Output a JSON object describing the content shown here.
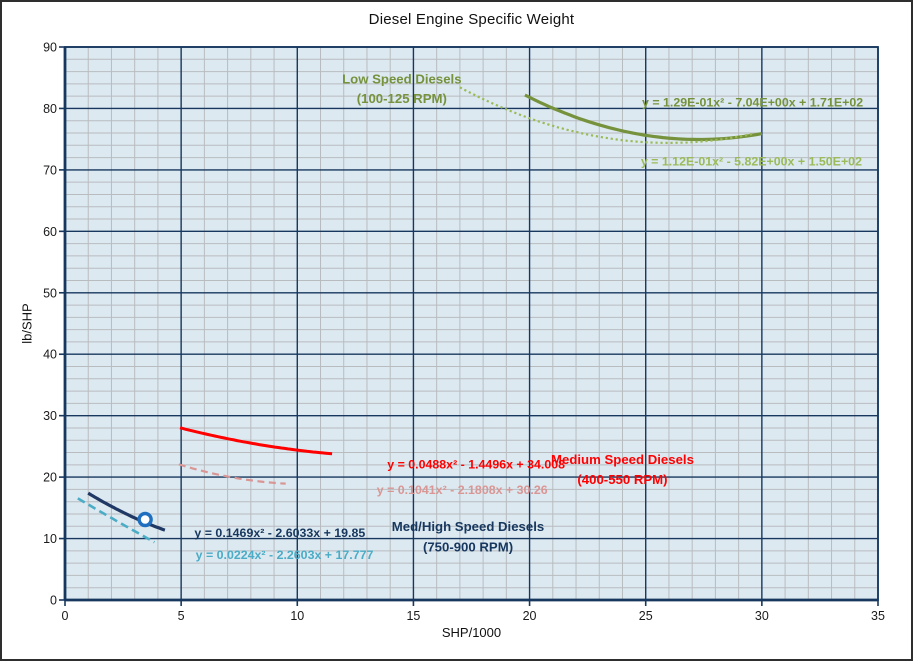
{
  "chart_data": {
    "type": "line",
    "title": "Diesel Engine Specific Weight",
    "xlabel": "SHP/1000",
    "ylabel": "lb/SHP",
    "xlim": [
      0,
      35
    ],
    "ylim": [
      0,
      90
    ],
    "x_ticks": [
      0,
      5,
      10,
      15,
      20,
      25,
      30,
      35
    ],
    "y_ticks": [
      0,
      10,
      20,
      30,
      40,
      50,
      60,
      70,
      80,
      90
    ],
    "x_minor_step": 1,
    "y_minor_step": 2,
    "grid": "major and minor gridlines on",
    "legend": "none (inline colored labels)",
    "plot_bg": "#DCE9F1",
    "minor_grid_color": "#B8BCBF",
    "major_grid_color": "#17375E",
    "tick_label_color": "#1a1a1a",
    "series": [
      {
        "id": "low-speed-trend-solid",
        "name": "Low Speed Diesels (100-125 RPM) - polynomial fit (solid)",
        "equation": "y = 1.29E-01x² - 7.04E+00x + 1.71E+02",
        "coeffs": [
          0.129,
          -7.04,
          171
        ],
        "x_range": [
          19.8,
          30.0
        ],
        "color": "#76923C",
        "dash": "none",
        "width": 3.2
      },
      {
        "id": "low-speed-trend-dotted",
        "name": "Low Speed Diesels (100-125 RPM) - polynomial fit (dotted)",
        "equation": "y = 1.12E-01x² - 5.82E+00x + 1.50E+02",
        "coeffs": [
          0.112,
          -5.82,
          150
        ],
        "x_range": [
          17.0,
          29.7
        ],
        "color": "#9BBB59",
        "dash": "2.2 2.8",
        "width": 2.2
      },
      {
        "id": "medium-speed-trend-solid",
        "name": "Medium Speed Diesels (400-550 RPM) - polynomial fit (solid)",
        "equation": "y = 0.0488x² - 1.4496x + 34.008",
        "coeffs": [
          0.0488,
          -1.4496,
          34.008
        ],
        "x_range": [
          4.95,
          11.5
        ],
        "color": "#FF0000",
        "dash": "none",
        "width": 3.0
      },
      {
        "id": "medium-speed-trend-dashed",
        "name": "Medium Speed Diesels (400-550 RPM) - polynomial fit (dashed)",
        "equation": "y = 0.1041x² - 2.1808x + 30.26",
        "coeffs": [
          0.1041,
          -2.1808,
          30.26
        ],
        "x_range": [
          4.9,
          9.5
        ],
        "color": "#D99694",
        "dash": "7 4.5",
        "width": 2.2
      },
      {
        "id": "med-high-speed-trend-solid",
        "name": "Med/High Speed Diesels (750-900 RPM) - polynomial fit (solid)",
        "equation": "y = 0.1469x² - 2.6033x + 19.85",
        "coeffs": [
          0.1469,
          -2.6033,
          19.85
        ],
        "x_range": [
          1.0,
          4.3
        ],
        "color": "#1F3864",
        "dash": "none",
        "width": 3.2
      },
      {
        "id": "med-high-speed-trend-dashed",
        "name": "Med/High Speed Diesels (750-900 RPM) - polynomial fit (dashed)",
        "equation": "y = 0.0224x² - 2.2603x + 17.777",
        "coeffs": [
          0.0224,
          -2.2603,
          17.777
        ],
        "x_range": [
          0.55,
          3.85
        ],
        "color": "#4BACC6",
        "dash": "8 4.5",
        "width": 2.6
      }
    ],
    "marker": {
      "x": 3.45,
      "y": 13.1,
      "shape": "open-circle",
      "color": "#1F6FC0",
      "radius": 6,
      "stroke_width": 3.4
    },
    "annotations": [
      {
        "id": "low-speed-label-line1",
        "text": "Low Speed Diesels",
        "x": 14.5,
        "y": 84.75,
        "color": "#76923C",
        "size": 13.2
      },
      {
        "id": "low-speed-label-line2",
        "text": "(100-125 RPM)",
        "x": 14.5,
        "y": 81.6,
        "color": "#76923C",
        "size": 13.2
      },
      {
        "id": "low-speed-eq-solid",
        "text": "y = 1.29E-01x² - 7.04E+00x + 1.71E+02",
        "x": 29.6,
        "y": 81.0,
        "color": "#76923C",
        "size": 12.4
      },
      {
        "id": "low-speed-eq-dotted",
        "text": "y = 1.12E-01x² - 5.82E+00x + 1.50E+02",
        "x": 29.55,
        "y": 71.4,
        "color": "#9BBB59",
        "size": 12.4
      },
      {
        "id": "medium-speed-eq-solid",
        "text": "y = 0.0488x² - 1.4496x + 34.008",
        "x": 17.7,
        "y": 22.1,
        "color": "#FF0000",
        "size": 12.4
      },
      {
        "id": "medium-speed-label-line1",
        "text": "Medium Speed Diesels",
        "x": 24.0,
        "y": 22.85,
        "color": "#FF0000",
        "size": 13.2
      },
      {
        "id": "medium-speed-label-line2",
        "text": "(400-550 RPM)",
        "x": 24.0,
        "y": 19.6,
        "color": "#FF0000",
        "size": 13.2
      },
      {
        "id": "medium-speed-eq-dashed",
        "text": "y = 0.1041x² - 2.1808x + 30.26",
        "x": 17.1,
        "y": 18.0,
        "color": "#D99694",
        "size": 12.4
      },
      {
        "id": "med-high-eq-solid",
        "text": "y = 0.1469x² - 2.6033x + 19.85",
        "x": 9.25,
        "y": 11.0,
        "color": "#17375E",
        "size": 12.4
      },
      {
        "id": "med-high-label-line1",
        "text": "Med/High Speed Diesels",
        "x": 17.35,
        "y": 11.95,
        "color": "#17375E",
        "size": 13.2
      },
      {
        "id": "med-high-label-line2",
        "text": "(750-900 RPM)",
        "x": 17.35,
        "y": 8.65,
        "color": "#17375E",
        "size": 13.2
      },
      {
        "id": "med-high-eq-dashed",
        "text": "y = 0.0224x² - 2.2603x + 17.777",
        "x": 9.45,
        "y": 7.4,
        "color": "#4BACC6",
        "size": 12.4
      }
    ]
  }
}
